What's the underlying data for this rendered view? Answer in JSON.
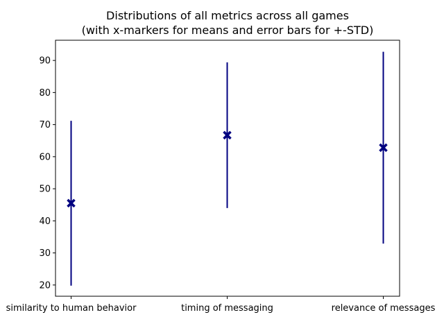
{
  "chart_data": {
    "type": "errorbar",
    "title": "Distributions of all metrics across all games\n(with x-markers for means and error bars for +-STD)",
    "title_lines": [
      "Distributions of all metrics across all games",
      "(with x-markers for means and error bars for +-STD)"
    ],
    "xlabel": "",
    "ylabel": "",
    "categories": [
      "similarity to human behavior",
      "timing of messaging",
      "relevance of messages"
    ],
    "means": [
      45.5,
      66.7,
      62.8
    ],
    "std": [
      25.7,
      22.7,
      29.9
    ],
    "ylim": [
      16.5,
      96.3
    ],
    "yticks": [
      20,
      30,
      40,
      50,
      60,
      70,
      80,
      90
    ],
    "grid": false,
    "legend": "none",
    "colors": {
      "series": "#000080",
      "axes": "#000000",
      "background": "#ffffff"
    }
  }
}
